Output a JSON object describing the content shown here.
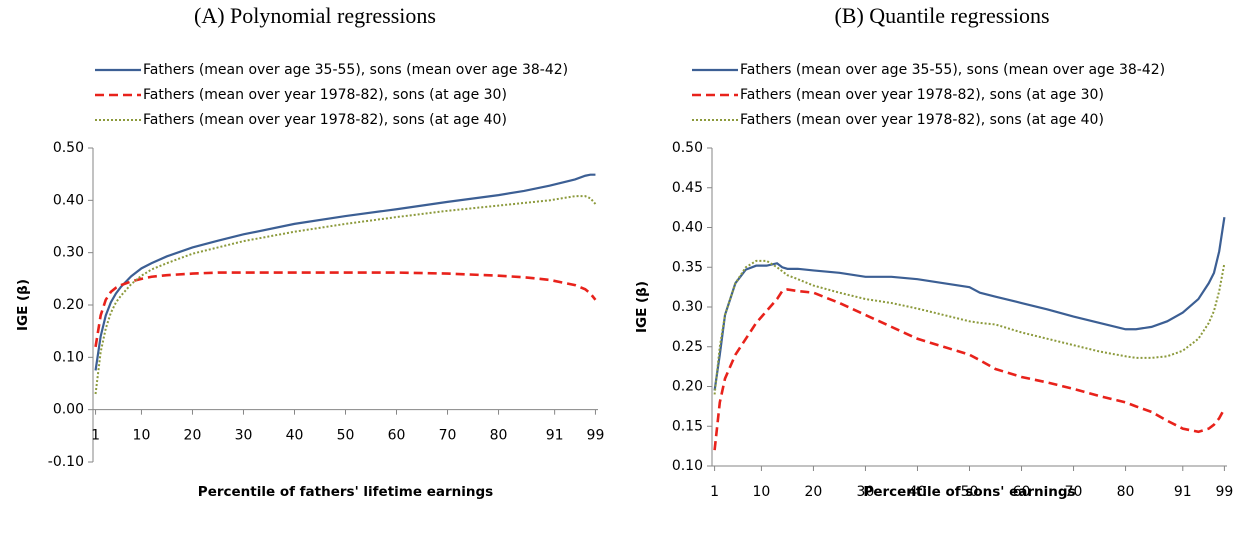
{
  "chart_data": [
    {
      "type": "line",
      "title": "(A) Polynomial regressions",
      "x_label": "Percentile of fathers' lifetime earnings",
      "y_label": "IGE (β)",
      "x": [
        1,
        2,
        3,
        4,
        5,
        6,
        8,
        10,
        12,
        15,
        20,
        25,
        30,
        40,
        50,
        60,
        70,
        80,
        85,
        90,
        95,
        97,
        98,
        99
      ],
      "series": [
        {
          "name": "Fathers (mean over age 35-55), sons (mean over age 38-42)",
          "color": "#3c5f94",
          "dash": "solid",
          "values": [
            0.075,
            0.14,
            0.18,
            0.205,
            0.222,
            0.235,
            0.255,
            0.27,
            0.28,
            0.293,
            0.31,
            0.323,
            0.335,
            0.355,
            0.37,
            0.383,
            0.397,
            0.41,
            0.418,
            0.428,
            0.44,
            0.447,
            0.449,
            0.449
          ]
        },
        {
          "name": "Fathers (mean over year 1978-82), sons (at age 30)",
          "color": "#e8221b",
          "dash": "dashed",
          "values": [
            0.12,
            0.18,
            0.21,
            0.225,
            0.233,
            0.238,
            0.245,
            0.25,
            0.254,
            0.257,
            0.26,
            0.262,
            0.262,
            0.262,
            0.262,
            0.262,
            0.26,
            0.256,
            0.253,
            0.248,
            0.238,
            0.23,
            0.222,
            0.21
          ]
        },
        {
          "name": "Fathers (mean over year 1978-82), sons (at age 40)",
          "color": "#8c9a3c",
          "dash": "dotted",
          "values": [
            0.03,
            0.11,
            0.155,
            0.185,
            0.205,
            0.218,
            0.24,
            0.256,
            0.268,
            0.28,
            0.298,
            0.31,
            0.322,
            0.34,
            0.355,
            0.368,
            0.38,
            0.39,
            0.395,
            0.4,
            0.408,
            0.408,
            0.404,
            0.393
          ]
        }
      ],
      "xlim": [
        0.5,
        99.5
      ],
      "xticks": [
        1,
        10,
        20,
        30,
        40,
        50,
        60,
        70,
        80,
        91,
        99
      ],
      "ylim": [
        -0.1,
        0.5
      ],
      "yticks": [
        {
          "value": -0.1,
          "label": "-0.10"
        },
        {
          "value": 0,
          "label": "0.00"
        },
        {
          "value": 0.1,
          "label": "0.10"
        },
        {
          "value": 0.2,
          "label": "0.20"
        },
        {
          "value": 0.3,
          "label": "0.30"
        },
        {
          "value": 0.4,
          "label": "0.40"
        },
        {
          "value": 0.5,
          "label": "0.50"
        }
      ],
      "grid": false
    },
    {
      "type": "line",
      "title": "(B) Quantile regressions",
      "x_label": "Percentile of sons' earnings",
      "y_label": "IGE (β)",
      "x": [
        1,
        2,
        3,
        5,
        7,
        9,
        11,
        13,
        14,
        15,
        17,
        20,
        25,
        30,
        35,
        40,
        45,
        50,
        52,
        55,
        60,
        65,
        70,
        75,
        80,
        82,
        85,
        88,
        91,
        94,
        96,
        97,
        98,
        99
      ],
      "series": [
        {
          "name": "Fathers (mean over age 35-55), sons (mean over age 38-42)",
          "color": "#3c5f94",
          "dash": "solid",
          "values": [
            0.195,
            0.24,
            0.29,
            0.33,
            0.347,
            0.352,
            0.352,
            0.355,
            0.35,
            0.348,
            0.348,
            0.346,
            0.343,
            0.338,
            0.338,
            0.335,
            0.33,
            0.325,
            0.318,
            0.313,
            0.305,
            0.297,
            0.288,
            0.28,
            0.272,
            0.272,
            0.275,
            0.282,
            0.293,
            0.31,
            0.33,
            0.343,
            0.37,
            0.413
          ]
        },
        {
          "name": "Fathers (mean over year 1978-82), sons (at age 30)",
          "color": "#e8221b",
          "dash": "dashed",
          "values": [
            0.12,
            0.18,
            0.21,
            0.24,
            0.26,
            0.28,
            0.295,
            0.31,
            0.32,
            0.322,
            0.32,
            0.318,
            0.305,
            0.29,
            0.275,
            0.26,
            0.25,
            0.24,
            0.233,
            0.222,
            0.212,
            0.205,
            0.197,
            0.188,
            0.18,
            0.175,
            0.168,
            0.157,
            0.147,
            0.143,
            0.147,
            0.152,
            0.16,
            0.172
          ]
        },
        {
          "name": "Fathers (mean over year 1978-82), sons (at age 40)",
          "color": "#8c9a3c",
          "dash": "dotted",
          "values": [
            0.19,
            0.25,
            0.29,
            0.33,
            0.35,
            0.358,
            0.358,
            0.35,
            0.345,
            0.34,
            0.335,
            0.327,
            0.318,
            0.31,
            0.305,
            0.298,
            0.29,
            0.282,
            0.28,
            0.278,
            0.268,
            0.26,
            0.252,
            0.244,
            0.238,
            0.236,
            0.236,
            0.238,
            0.245,
            0.26,
            0.28,
            0.295,
            0.32,
            0.355
          ]
        }
      ],
      "xlim": [
        0.5,
        99.5
      ],
      "xticks": [
        1,
        10,
        20,
        30,
        40,
        50,
        60,
        70,
        80,
        91,
        99
      ],
      "ylim": [
        0.1,
        0.5
      ],
      "yticks": [
        {
          "value": 0.1,
          "label": "0.10"
        },
        {
          "value": 0.15,
          "label": "0.15"
        },
        {
          "value": 0.2,
          "label": "0.20"
        },
        {
          "value": 0.25,
          "label": "0.25"
        },
        {
          "value": 0.3,
          "label": "0.30"
        },
        {
          "value": 0.35,
          "label": "0.35"
        },
        {
          "value": 0.4,
          "label": "0.40"
        },
        {
          "value": 0.45,
          "label": "0.45"
        },
        {
          "value": 0.5,
          "label": "0.50"
        }
      ],
      "grid": false
    }
  ]
}
